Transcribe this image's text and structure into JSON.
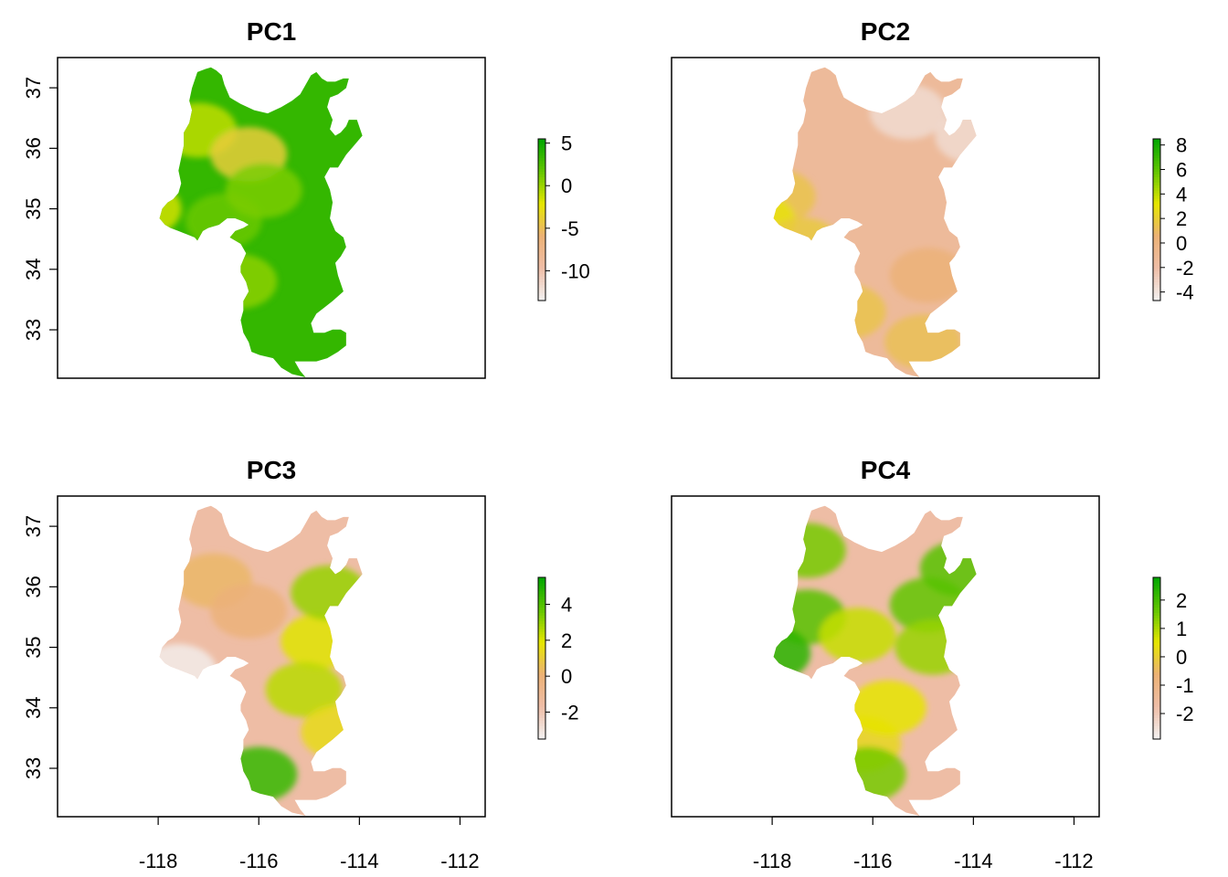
{
  "colors": {
    "ramp": [
      "#F2F2F2",
      "#EEBEA8",
      "#ECB176",
      "#E6E600",
      "#63C600",
      "#00A600"
    ]
  },
  "chart_data": [
    {
      "type": "heatmap",
      "title": "PC1",
      "xlim": [
        -120,
        -111.5
      ],
      "ylim": [
        32.2,
        37.5
      ],
      "x_ticks": [
        -118,
        -116,
        -114,
        -112
      ],
      "x_tick_labels": [
        "-118",
        "-116",
        "-114",
        "-112"
      ],
      "y_ticks": [
        33,
        34,
        35,
        36,
        37
      ],
      "y_tick_labels": [
        "33",
        "34",
        "35",
        "36",
        "37"
      ],
      "show_x_axis": false,
      "show_y_axis": true,
      "zlim": [
        -13.5,
        5.5
      ],
      "legend_ticks": [
        5,
        0,
        -5,
        -10
      ],
      "legend_tick_labels": [
        "5",
        "0",
        "-5",
        "-10"
      ],
      "dominant_value": 3.5,
      "patches": [
        {
          "x": -117.2,
          "y": 36.3,
          "value": -1
        },
        {
          "x": -116.2,
          "y": 35.9,
          "value": -4
        },
        {
          "x": -118.3,
          "y": 35.0,
          "value": -1.5
        },
        {
          "x": -116.7,
          "y": 34.8,
          "value": 1.5
        },
        {
          "x": -115.9,
          "y": 35.3,
          "value": 1
        },
        {
          "x": -116.4,
          "y": 33.8,
          "value": 0.5
        },
        {
          "x": -113.4,
          "y": 36.9,
          "value": -3
        }
      ]
    },
    {
      "type": "heatmap",
      "title": "PC2",
      "xlim": [
        -120,
        -111.5
      ],
      "ylim": [
        32.2,
        37.5
      ],
      "x_ticks": [
        -118,
        -116,
        -114,
        -112
      ],
      "x_tick_labels": [
        "-118",
        "-116",
        "-114",
        "-112"
      ],
      "y_ticks": [
        33,
        34,
        35,
        36,
        37
      ],
      "y_tick_labels": [
        "33",
        "34",
        "35",
        "36",
        "37"
      ],
      "show_x_axis": false,
      "show_y_axis": false,
      "zlim": [
        -4.7,
        8.5
      ],
      "legend_ticks": [
        8,
        6,
        4,
        2,
        0,
        -2,
        -4
      ],
      "legend_tick_labels": [
        "8",
        "6",
        "4",
        "2",
        "0",
        "-2",
        "-4"
      ],
      "dominant_value": -1.3,
      "patches": [
        {
          "x": -117.9,
          "y": 35.2,
          "value": 1.5
        },
        {
          "x": -118.3,
          "y": 34.8,
          "value": 3
        },
        {
          "x": -117.4,
          "y": 34.4,
          "value": 1.8
        },
        {
          "x": -116.5,
          "y": 33.3,
          "value": 1.5
        },
        {
          "x": -115.0,
          "y": 32.8,
          "value": 1.3
        },
        {
          "x": -114.9,
          "y": 33.9,
          "value": 0.5
        },
        {
          "x": -115.3,
          "y": 36.6,
          "value": -3.5
        },
        {
          "x": -114.0,
          "y": 36.2,
          "value": -3.5
        }
      ]
    },
    {
      "type": "heatmap",
      "title": "PC3",
      "xlim": [
        -120,
        -111.5
      ],
      "ylim": [
        32.2,
        37.5
      ],
      "x_ticks": [
        -118,
        -116,
        -114,
        -112
      ],
      "x_tick_labels": [
        "-118",
        "-116",
        "-114",
        "-112"
      ],
      "y_ticks": [
        33,
        34,
        35,
        36,
        37
      ],
      "y_tick_labels": [
        "33",
        "34",
        "35",
        "36",
        "37"
      ],
      "show_x_axis": true,
      "show_y_axis": true,
      "zlim": [
        -3.5,
        5.5
      ],
      "legend_ticks": [
        4,
        2,
        0,
        -2
      ],
      "legend_tick_labels": [
        "4",
        "2",
        "0",
        "-2"
      ],
      "dominant_value": -1.6,
      "patches": [
        {
          "x": -114.8,
          "y": 35.1,
          "value": 2
        },
        {
          "x": -114.6,
          "y": 35.9,
          "value": 3
        },
        {
          "x": -115.1,
          "y": 34.3,
          "value": 2.5
        },
        {
          "x": -114.4,
          "y": 33.6,
          "value": 1.5
        },
        {
          "x": -117.6,
          "y": 34.6,
          "value": -3.3
        },
        {
          "x": -116.0,
          "y": 32.9,
          "value": 4.5
        },
        {
          "x": -116.9,
          "y": 36.1,
          "value": 0.3
        },
        {
          "x": -116.2,
          "y": 35.6,
          "value": 0
        }
      ]
    },
    {
      "type": "heatmap",
      "title": "PC4",
      "xlim": [
        -120,
        -111.5
      ],
      "ylim": [
        32.2,
        37.5
      ],
      "x_ticks": [
        -118,
        -116,
        -114,
        -112
      ],
      "x_tick_labels": [
        "-118",
        "-116",
        "-114",
        "-112"
      ],
      "y_ticks": [
        33,
        34,
        35,
        36,
        37
      ],
      "y_tick_labels": [
        "33",
        "34",
        "35",
        "36",
        "37"
      ],
      "show_x_axis": true,
      "show_y_axis": false,
      "zlim": [
        -2.9,
        2.8
      ],
      "legend_ticks": [
        2,
        1,
        0,
        -1,
        -2
      ],
      "legend_tick_labels": [
        "2",
        "1",
        "0",
        "-1",
        "-2"
      ],
      "dominant_value": -1.7,
      "patches": [
        {
          "x": -117.3,
          "y": 35.5,
          "value": 1.8
        },
        {
          "x": -118.0,
          "y": 34.9,
          "value": 2.3
        },
        {
          "x": -117.3,
          "y": 36.6,
          "value": 1.5
        },
        {
          "x": -116.3,
          "y": 35.2,
          "value": 0.8
        },
        {
          "x": -114.9,
          "y": 35.7,
          "value": 1.7
        },
        {
          "x": -114.3,
          "y": 36.3,
          "value": 1.8
        },
        {
          "x": -114.8,
          "y": 35.0,
          "value": 1.2
        },
        {
          "x": -116.2,
          "y": 33.4,
          "value": 0.2
        },
        {
          "x": -115.7,
          "y": 34.0,
          "value": 0.5
        },
        {
          "x": -116.1,
          "y": 32.9,
          "value": 1.5
        }
      ]
    }
  ]
}
